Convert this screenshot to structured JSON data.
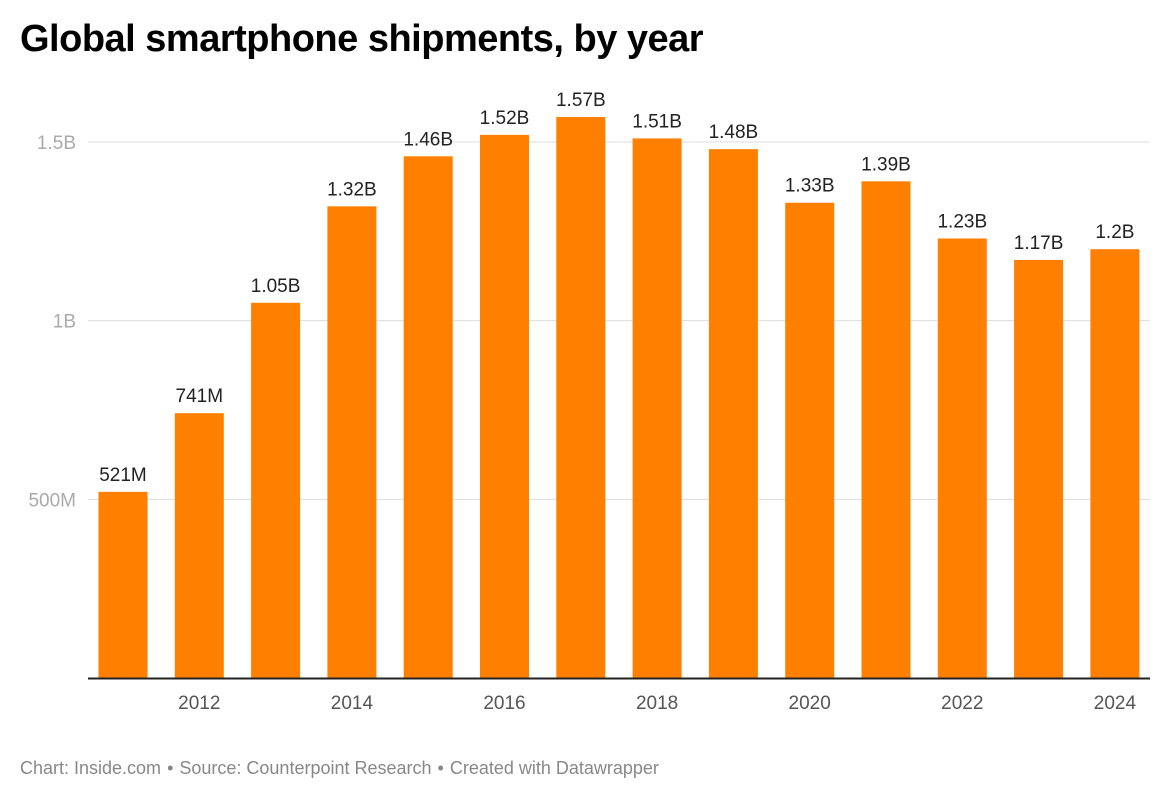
{
  "chart_data": {
    "type": "bar",
    "title": "Global smartphone shipments, by year",
    "categories": [
      "2011",
      "2012",
      "2013",
      "2014",
      "2015",
      "2016",
      "2017",
      "2018",
      "2019",
      "2020",
      "2021",
      "2022",
      "2023",
      "2024"
    ],
    "values": [
      521,
      741,
      1050,
      1320,
      1460,
      1520,
      1570,
      1510,
      1480,
      1330,
      1390,
      1230,
      1170,
      1200
    ],
    "value_labels": [
      "521M",
      "741M",
      "1.05B",
      "1.32B",
      "1.46B",
      "1.52B",
      "1.57B",
      "1.51B",
      "1.48B",
      "1.33B",
      "1.39B",
      "1.23B",
      "1.17B",
      "1.2B"
    ],
    "x_tick_labels": [
      "2012",
      "2014",
      "2016",
      "2018",
      "2020",
      "2022",
      "2024"
    ],
    "y_ticks": [
      500,
      1000,
      1500
    ],
    "y_tick_labels": [
      "500M",
      "1B",
      "1.5B"
    ],
    "ylim": [
      0,
      1600
    ],
    "xlabel": "",
    "ylabel": "",
    "units": "millions of units",
    "bar_color": "#ff7f00",
    "grid": true
  },
  "footer": {
    "chart_credit": "Chart: Inside.com",
    "source": "Source: Counterpoint Research",
    "created_with": "Created with Datawrapper",
    "separator": "•"
  },
  "colors": {
    "grid": "#dddddd",
    "axis": "#222222"
  }
}
